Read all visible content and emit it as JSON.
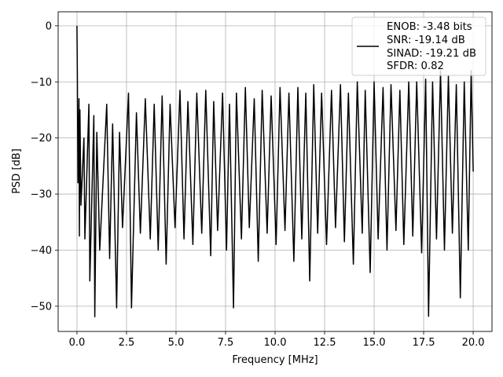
{
  "chart_data": {
    "type": "line",
    "title": "",
    "xlabel": "Frequency [MHz]",
    "ylabel": "PSD [dB]",
    "xlim": [
      -0.95,
      20.95
    ],
    "ylim": [
      -54.5,
      2.5
    ],
    "xticks": [
      0.0,
      2.5,
      5.0,
      7.5,
      10.0,
      12.5,
      15.0,
      17.5,
      20.0
    ],
    "xtick_labels": [
      "0.0",
      "2.5",
      "5.0",
      "7.5",
      "10.0",
      "12.5",
      "15.0",
      "17.5",
      "20.0"
    ],
    "yticks": [
      0,
      -10,
      -20,
      -30,
      -40,
      -50
    ],
    "ytick_labels": [
      "0",
      "−10",
      "−20",
      "−30",
      "−40",
      "−50"
    ],
    "grid": true,
    "legend_position": "top-right",
    "series": [
      {
        "name": "",
        "color": "#000000",
        "x": [
          0.0,
          0.02,
          0.05,
          0.1,
          0.12,
          0.15,
          0.2,
          0.35,
          0.4,
          0.6,
          0.65,
          0.85,
          0.9,
          1.0,
          1.15,
          1.5,
          1.65,
          1.8,
          2.0,
          2.15,
          2.3,
          2.6,
          2.75,
          3.0,
          3.2,
          3.45,
          3.7,
          3.9,
          4.1,
          4.3,
          4.5,
          4.7,
          4.95,
          5.2,
          5.4,
          5.6,
          5.85,
          6.05,
          6.3,
          6.5,
          6.75,
          6.9,
          7.1,
          7.35,
          7.55,
          7.7,
          7.9,
          8.05,
          8.3,
          8.5,
          8.7,
          8.95,
          9.15,
          9.35,
          9.6,
          9.8,
          10.05,
          10.25,
          10.5,
          10.7,
          10.95,
          11.15,
          11.35,
          11.55,
          11.75,
          11.95,
          12.15,
          12.35,
          12.6,
          12.85,
          13.05,
          13.3,
          13.5,
          13.7,
          13.95,
          14.15,
          14.4,
          14.55,
          14.8,
          15.0,
          15.2,
          15.45,
          15.65,
          15.85,
          16.1,
          16.3,
          16.5,
          16.75,
          16.95,
          17.15,
          17.4,
          17.6,
          17.75,
          17.95,
          18.15,
          18.35,
          18.55,
          18.75,
          18.95,
          19.15,
          19.35,
          19.55,
          19.75,
          19.9,
          20.0
        ],
        "y": [
          0.0,
          -8.0,
          -28.0,
          -13.0,
          -37.5,
          -15.0,
          -32.0,
          -20.0,
          -38.0,
          -14.0,
          -45.5,
          -16.0,
          -51.9,
          -19.0,
          -40.0,
          -14.0,
          -41.5,
          -17.5,
          -50.3,
          -19.0,
          -36.0,
          -12.0,
          -50.3,
          -15.5,
          -37.0,
          -13.0,
          -38.0,
          -14.0,
          -40.0,
          -12.5,
          -42.5,
          -14.0,
          -36.0,
          -11.5,
          -38.0,
          -13.5,
          -39.0,
          -12.0,
          -37.0,
          -11.5,
          -41.0,
          -13.5,
          -36.5,
          -12.0,
          -40.0,
          -14.0,
          -50.3,
          -12.0,
          -38.0,
          -11.0,
          -36.0,
          -13.0,
          -42.0,
          -11.5,
          -37.0,
          -12.5,
          -39.0,
          -11.0,
          -36.5,
          -12.0,
          -42.0,
          -11.0,
          -38.0,
          -12.0,
          -45.5,
          -10.5,
          -37.0,
          -12.0,
          -39.0,
          -11.5,
          -36.0,
          -10.5,
          -38.5,
          -12.0,
          -42.5,
          -10.0,
          -37.0,
          -11.5,
          -44.0,
          -10.0,
          -38.0,
          -11.0,
          -40.0,
          -10.5,
          -36.5,
          -11.5,
          -39.0,
          -10.0,
          -37.5,
          -10.0,
          -40.5,
          -9.5,
          -51.8,
          -10.0,
          -38.0,
          -8.0,
          -40.0,
          -9.0,
          -37.0,
          -10.5,
          -48.5,
          -10.0,
          -40.0,
          -8.0,
          -26.0
        ]
      }
    ]
  },
  "legend": {
    "lines": [
      "ENOB: -3.48 bits",
      "SNR: -19.14 dB",
      "SINAD: -19.21 dB",
      "SFDR: 0.82"
    ]
  }
}
